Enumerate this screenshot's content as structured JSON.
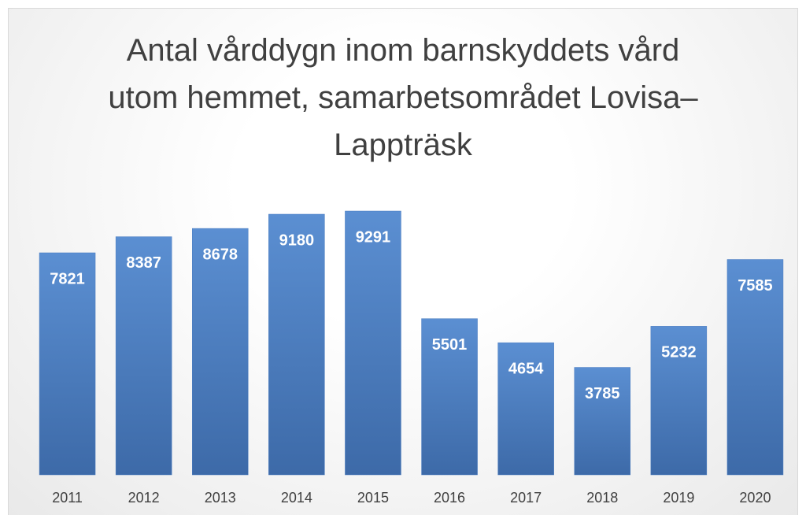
{
  "chart_data": {
    "type": "bar",
    "title": "Antal vårddygn inom barnskyddets vård utom hemmet, samarbetsområdet Lovisa–Lappträsk",
    "categories": [
      "2011",
      "2012",
      "2013",
      "2014",
      "2015",
      "2016",
      "2017",
      "2018",
      "2019",
      "2020"
    ],
    "values": [
      7821,
      8387,
      8678,
      9180,
      9291,
      5501,
      4654,
      3785,
      5232,
      7585
    ],
    "color": "#4a7cc0"
  }
}
